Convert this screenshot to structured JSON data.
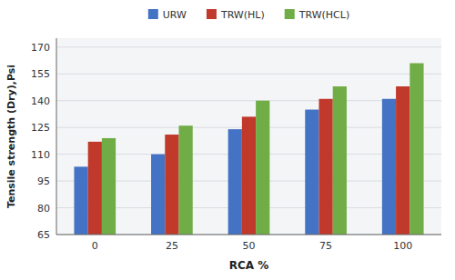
{
  "chart_data": {
    "type": "bar",
    "categories": [
      "0",
      "25",
      "50",
      "75",
      "100"
    ],
    "series": [
      {
        "name": "URW",
        "color": "#4472C4",
        "values": [
          103,
          110,
          124,
          135,
          141
        ]
      },
      {
        "name": "TRW(HL)",
        "color": "#C0392B",
        "values": [
          117,
          121,
          131,
          141,
          148
        ]
      },
      {
        "name": "TRW(HCL)",
        "color": "#70AD47",
        "values": [
          119,
          126,
          140,
          148,
          161
        ]
      }
    ],
    "xlabel": "RCA %",
    "ylabel": "Tensile strength (Dry),Psi",
    "ylim": [
      65,
      175
    ],
    "yticks": [
      65,
      80,
      95,
      110,
      125,
      140,
      155,
      170
    ],
    "grid": true,
    "legend": "top"
  }
}
